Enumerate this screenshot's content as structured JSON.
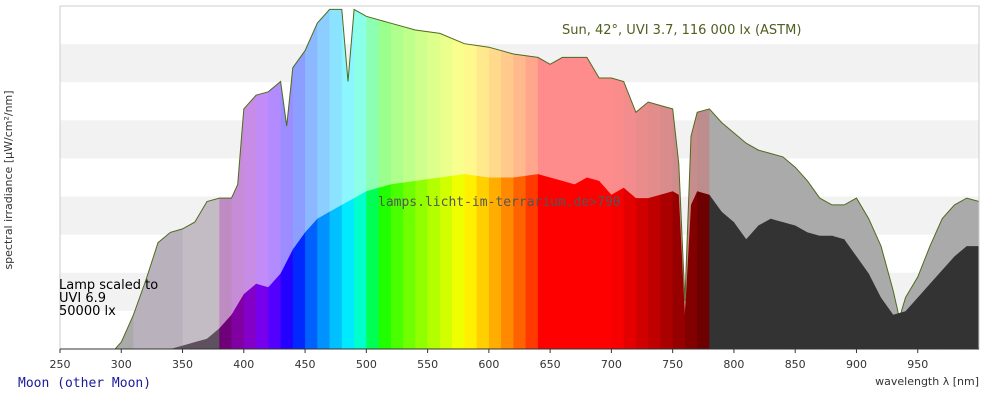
{
  "chart_data": {
    "type": "area",
    "x_ticks": [
      250,
      300,
      350,
      400,
      450,
      500,
      550,
      600,
      650,
      700,
      750,
      800,
      850,
      900,
      950
    ],
    "xlim": [
      250,
      1000
    ],
    "ylim": [
      0,
      1
    ],
    "xlabel": "wavelength λ [nm]",
    "ylabel": "spectral irradiance [µW/cm²/nm]",
    "grid": true,
    "series": [
      {
        "name": "Sun, 42°, UVI 3.7, 116 000 lx (ASTM)",
        "color": "#a8a8a8",
        "line_color": "#4f6a1f",
        "x": [
          250,
          295,
          300,
          310,
          320,
          330,
          340,
          350,
          360,
          370,
          380,
          390,
          395,
          400,
          410,
          420,
          430,
          435,
          440,
          450,
          460,
          470,
          480,
          485,
          490,
          500,
          520,
          540,
          560,
          580,
          600,
          620,
          640,
          650,
          660,
          680,
          690,
          700,
          710,
          720,
          730,
          740,
          750,
          755,
          760,
          765,
          770,
          780,
          790,
          800,
          810,
          820,
          830,
          840,
          850,
          860,
          870,
          880,
          890,
          900,
          910,
          920,
          930,
          935,
          940,
          950,
          960,
          970,
          980,
          990,
          1000
        ],
        "values": [
          0,
          0,
          0.02,
          0.1,
          0.2,
          0.31,
          0.34,
          0.35,
          0.37,
          0.43,
          0.44,
          0.44,
          0.48,
          0.7,
          0.74,
          0.75,
          0.78,
          0.65,
          0.82,
          0.87,
          0.95,
          0.99,
          0.99,
          0.78,
          0.99,
          0.97,
          0.95,
          0.93,
          0.92,
          0.89,
          0.88,
          0.86,
          0.85,
          0.83,
          0.85,
          0.85,
          0.79,
          0.79,
          0.78,
          0.69,
          0.72,
          0.71,
          0.7,
          0.54,
          0.14,
          0.62,
          0.69,
          0.7,
          0.66,
          0.63,
          0.6,
          0.58,
          0.57,
          0.56,
          0.53,
          0.49,
          0.44,
          0.42,
          0.42,
          0.44,
          0.38,
          0.3,
          0.17,
          0.09,
          0.15,
          0.21,
          0.3,
          0.38,
          0.42,
          0.44,
          0.43
        ]
      },
      {
        "name": "Lamp scaled to UVI 6.9 50000 lx",
        "color": "#333333",
        "x": [
          250,
          340,
          350,
          360,
          370,
          380,
          390,
          400,
          410,
          420,
          430,
          440,
          450,
          460,
          470,
          480,
          490,
          500,
          510,
          520,
          540,
          560,
          580,
          600,
          620,
          640,
          650,
          660,
          670,
          680,
          690,
          700,
          710,
          720,
          730,
          740,
          750,
          755,
          760,
          765,
          770,
          780,
          790,
          800,
          810,
          820,
          830,
          840,
          850,
          860,
          870,
          880,
          890,
          900,
          910,
          920,
          930,
          940,
          950,
          960,
          970,
          980,
          990,
          1000
        ],
        "values": [
          0,
          0,
          0.01,
          0.02,
          0.03,
          0.06,
          0.1,
          0.16,
          0.19,
          0.18,
          0.22,
          0.29,
          0.34,
          0.38,
          0.4,
          0.42,
          0.44,
          0.46,
          0.47,
          0.48,
          0.49,
          0.5,
          0.51,
          0.5,
          0.5,
          0.51,
          0.5,
          0.49,
          0.48,
          0.5,
          0.49,
          0.45,
          0.47,
          0.44,
          0.44,
          0.45,
          0.46,
          0.45,
          0.1,
          0.42,
          0.46,
          0.45,
          0.4,
          0.37,
          0.32,
          0.36,
          0.38,
          0.37,
          0.36,
          0.34,
          0.33,
          0.33,
          0.32,
          0.27,
          0.22,
          0.15,
          0.1,
          0.11,
          0.15,
          0.19,
          0.23,
          0.27,
          0.3,
          0.3
        ]
      }
    ],
    "annotations": [
      {
        "text": "Sun, 42°, UVI 3.7, 116 000 lx (ASTM)",
        "x": 680,
        "y": 0.93
      },
      {
        "text": "lamps.licht-im-terrarium.de>790",
        "x": 450,
        "y": 0.47
      }
    ]
  },
  "labels": {
    "sun_caption": "Sun, 42°, UVI 3.7, 116 000 lx (ASTM)",
    "watermark": "lamps.licht-im-terrarium.de>790",
    "lamp_line1": "Lamp scaled to",
    "lamp_line2": "UVI 6.9",
    "lamp_line3": "50000 lx",
    "ylabel": "spectral irradiance [µW/cm²/nm]",
    "xlabel": "wavelength λ [nm]",
    "footer_link": "Moon (other Moon)"
  }
}
